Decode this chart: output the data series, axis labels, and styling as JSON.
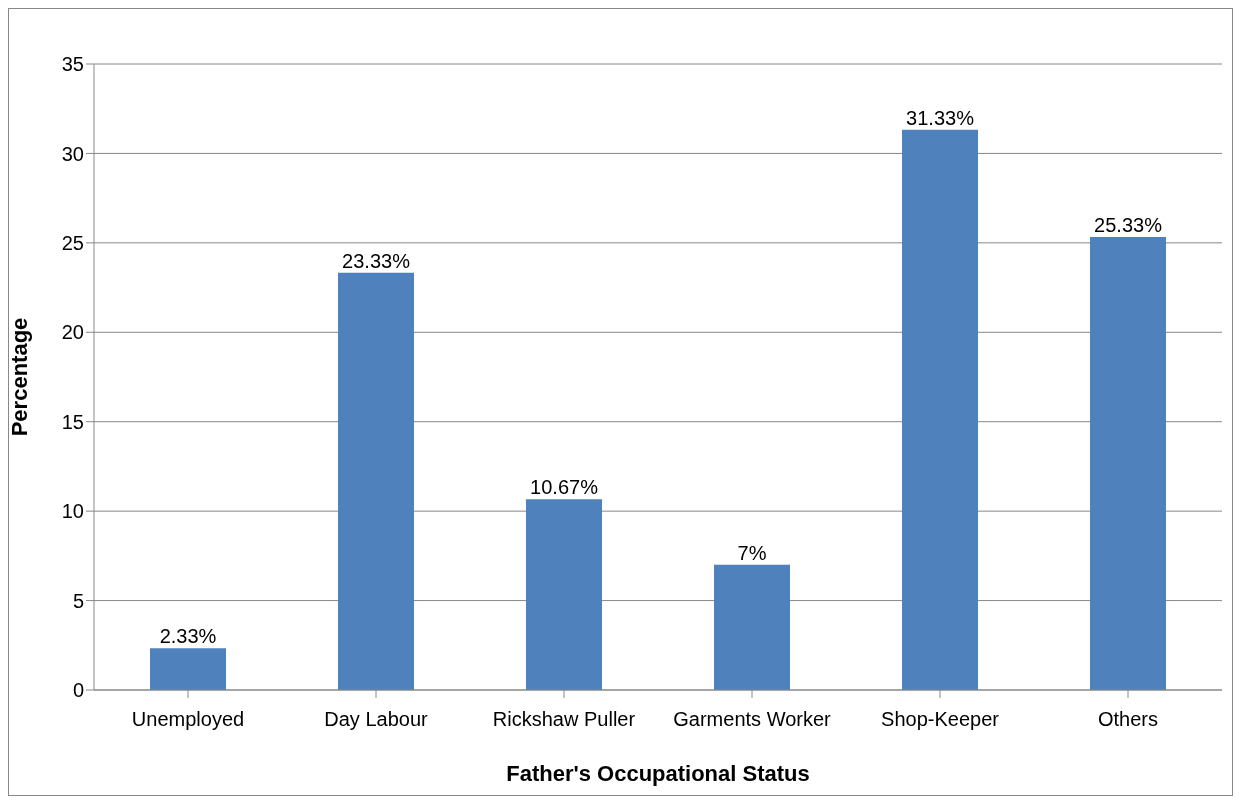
{
  "chart_data": {
    "type": "bar",
    "xlabel": "Father's Occupational Status",
    "ylabel": "Percentage",
    "categories": [
      "Unemployed",
      "Day Labour",
      "Rickshaw Puller",
      "Garments Worker",
      "Shop-Keeper",
      "Others"
    ],
    "values": [
      2.33,
      23.33,
      10.67,
      7,
      31.33,
      25.33
    ],
    "value_labels": [
      "2.33%",
      "23.33%",
      "10.67%",
      "7%",
      "31.33%",
      "25.33%"
    ],
    "color": "#4f81bd",
    "ylim": [
      0,
      35
    ],
    "yticks": [
      0,
      5,
      10,
      15,
      20,
      25,
      30,
      35
    ],
    "grid": "y"
  }
}
